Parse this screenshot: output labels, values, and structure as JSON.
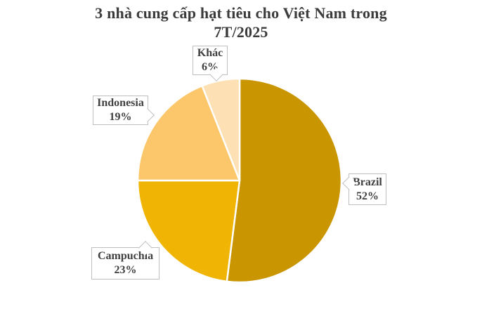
{
  "title": {
    "full": "3 nhà cung cấp hạt tiêu cho Việt Nam trong 7T/2025",
    "line1": "3 nhà cung cấp hạt tiêu cho Việt Nam trong",
    "line2": "7T/2025"
  },
  "chart_data": {
    "type": "pie",
    "title": "3 nhà cung cấp hạt tiêu cho Việt Nam trong 7T/2025",
    "unit": "%",
    "start_angle_deg": -90,
    "direction": "clockwise",
    "legend_position": "none",
    "label_style": "callout boxes with pointer tails",
    "slices": [
      {
        "label": "Brazil",
        "value": 52,
        "pct_label": "52%",
        "color": "#C99602"
      },
      {
        "label": "Campuchia",
        "value": 23,
        "pct_label": "23%",
        "color": "#F0B404"
      },
      {
        "label": "Indonesia",
        "value": 19,
        "pct_label": "19%",
        "color": "#FCC76A"
      },
      {
        "label": "Khác",
        "value": 6,
        "pct_label": "6%",
        "color": "#FDE0B3"
      }
    ],
    "colors": {
      "slice_border": "#FFFFFF",
      "callout_border": "#BFBFBF",
      "callout_bg": "#FFFFFF",
      "title_text": "#3B3B3B",
      "label_text": "#404040",
      "background": "#FFFFFF"
    }
  }
}
